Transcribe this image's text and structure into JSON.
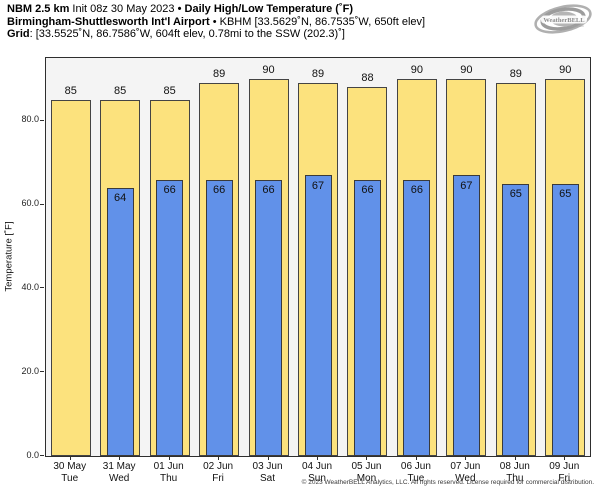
{
  "header": {
    "line1_bold1": "NBM 2.5 km",
    "line1_regular": " Init 08z 30 May 2023 ",
    "line1_sep": "•",
    "line1_bold2": " Daily High/Low Temperature (˚F)",
    "line2_bold": "Birmingham-Shuttlesworth Int'l Airport",
    "line2_sep": " • ",
    "line2_regular": "KBHM [33.5629˚N, 86.7535˚W, 650ft elev]",
    "line3_bold": "Grid",
    "line3_regular": ": [33.5525˚N, 86.7586˚W, 604ft elev, 0.78mi to the SSW (202.3)˚]"
  },
  "logo": {
    "text": "WeatherBELL"
  },
  "footer": {
    "copyright": "© 2023 WeatherBELL Analytics, LLC. All rights reserved. License required for commercial distribution."
  },
  "chart_data": {
    "type": "bar",
    "title": "NBM 2.5 km Daily High/Low Temperature (°F) — Birmingham-Shuttlesworth Int'l Airport (KBHM)",
    "categories": [
      "30 May",
      "31 May",
      "01 Jun",
      "02 Jun",
      "03 Jun",
      "04 Jun",
      "05 Jun",
      "06 Jun",
      "07 Jun",
      "08 Jun",
      "09 Jun"
    ],
    "weekdays": [
      "Tue",
      "Wed",
      "Thu",
      "Fri",
      "Sat",
      "Sun",
      "Mon",
      "Tue",
      "Wed",
      "Thu",
      "Fri"
    ],
    "series": [
      {
        "name": "Daily High",
        "color": "#fce27d",
        "edge_color": "#444444",
        "values": [
          85,
          85,
          85,
          89,
          90,
          89,
          88,
          90,
          90,
          89,
          90
        ]
      },
      {
        "name": "Daily Low",
        "color": "#6191e9",
        "edge_color": "#3a3a3a",
        "values": [
          null,
          64,
          66,
          66,
          66,
          67,
          66,
          66,
          67,
          65,
          65
        ]
      }
    ],
    "ylabel": "Temperature [˚F]",
    "xlabel": "",
    "yticks": [
      0,
      20,
      40,
      60,
      80
    ],
    "ytick_labels": [
      "0.0",
      "20.0",
      "40.0",
      "60.0",
      "80.0"
    ],
    "ylim": [
      0,
      95
    ],
    "grid": false,
    "legend": "none",
    "plot_background": "#f4f4f4",
    "figure_background": "#ffffff",
    "bar_value_labels": true
  }
}
